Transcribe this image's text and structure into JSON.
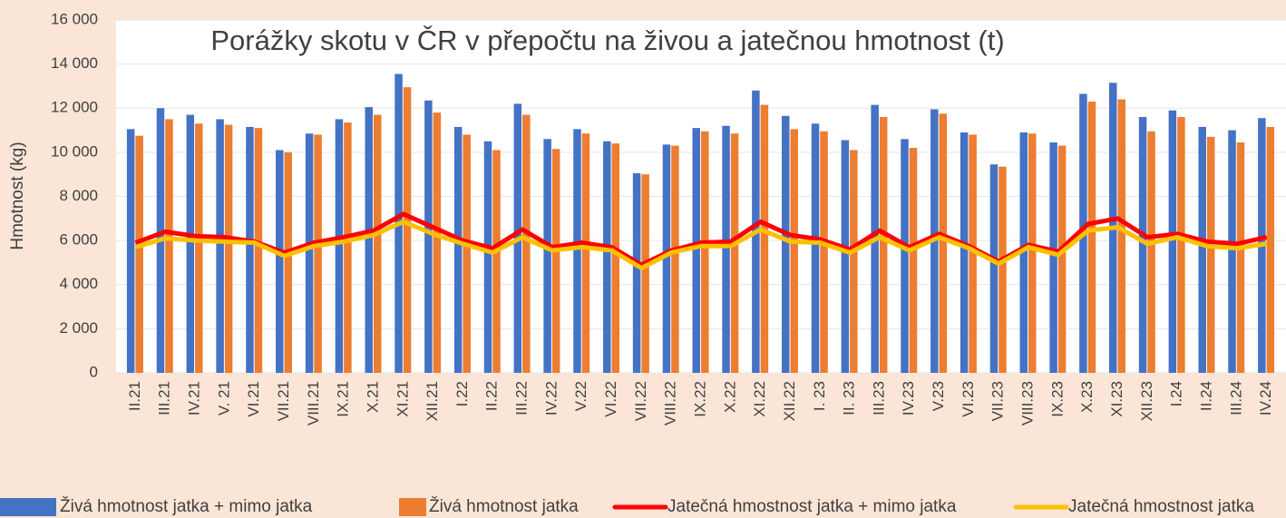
{
  "chart_data": {
    "type": "bar_line",
    "title": "Porážky skotu v ČR v přepočtu na živou a jatečnou hmotnost (t)",
    "y_label": "Hmotnost (kg)",
    "categories": [
      "II.21",
      "III.21",
      "IV.21",
      "V. 21",
      "VI.21",
      "VII.21",
      "VIII.21",
      "IX.21",
      "X.21",
      "XI.21",
      "XII.21",
      "I.22",
      "II.22",
      "III.22",
      "IV.22",
      "V.22",
      "VI.22",
      "VII.22",
      "VIII.22",
      "IX.22",
      "X.22",
      "XI.22",
      "XII.22",
      "I. 23",
      "II. 23",
      "III.23",
      "IV.23",
      "V.23",
      "VI.23",
      "VII.23",
      "VIII.23",
      "IX.23",
      "X.23",
      "XI.23",
      "XII.23",
      "I.24",
      "II.24",
      "III.24",
      "IV.24"
    ],
    "series": [
      {
        "name": "Živá hmotnost jatka + mimo jatka",
        "type": "bar",
        "color": "#4472c4",
        "values": [
          11050,
          12000,
          11700,
          11500,
          11150,
          10100,
          10850,
          11500,
          12050,
          13550,
          12350,
          11150,
          10500,
          12200,
          10600,
          11050,
          10500,
          9050,
          10350,
          11100,
          11200,
          12800,
          11650,
          11300,
          10550,
          12150,
          10600,
          11950,
          10900,
          9450,
          10900,
          10450,
          12650,
          13150,
          11600,
          11900,
          11150,
          11000,
          11550
        ]
      },
      {
        "name": "Živá hmotnost jatka",
        "type": "bar",
        "color": "#ed7d31",
        "values": [
          10750,
          11500,
          11300,
          11250,
          11100,
          10000,
          10800,
          11350,
          11700,
          12950,
          11800,
          10800,
          10100,
          11700,
          10150,
          10850,
          10400,
          9000,
          10300,
          10950,
          10850,
          12150,
          11050,
          10950,
          10100,
          11600,
          10200,
          11750,
          10800,
          9350,
          10850,
          10300,
          12300,
          12400,
          10950,
          11600,
          10700,
          10450,
          11150
        ]
      },
      {
        "name": "Jatečná hmostnost jatka + mimo jatka",
        "type": "line",
        "color": "#ff0000",
        "values": [
          5900,
          6400,
          6200,
          6150,
          5950,
          5450,
          5900,
          6150,
          6450,
          7200,
          6600,
          6000,
          5650,
          6500,
          5700,
          5900,
          5700,
          4900,
          5550,
          5900,
          5950,
          6850,
          6250,
          6050,
          5600,
          6450,
          5700,
          6300,
          5750,
          5050,
          5800,
          5500,
          6750,
          7000,
          6150,
          6300,
          5950,
          5850,
          6150
        ]
      },
      {
        "name": "Jatečná hmostnost jatka",
        "type": "line",
        "color": "#ffc000",
        "values": [
          5700,
          6100,
          6000,
          5950,
          5900,
          5300,
          5750,
          5950,
          6250,
          6850,
          6300,
          5850,
          5450,
          6150,
          5550,
          5700,
          5550,
          4750,
          5450,
          5750,
          5750,
          6500,
          5950,
          5900,
          5450,
          6150,
          5550,
          6150,
          5650,
          4950,
          5700,
          5350,
          6450,
          6600,
          5850,
          6150,
          5750,
          5650,
          5850
        ]
      }
    ],
    "ylim": [
      0,
      16000
    ],
    "yticks": [
      {
        "value": 0,
        "label": "0"
      },
      {
        "value": 2000,
        "label": "2 000"
      },
      {
        "value": 4000,
        "label": "4 000"
      },
      {
        "value": 6000,
        "label": "6 000"
      },
      {
        "value": 8000,
        "label": "8 000"
      },
      {
        "value": 10000,
        "label": "10 000"
      },
      {
        "value": 12000,
        "label": "12 000"
      },
      {
        "value": 14000,
        "label": "14 000"
      },
      {
        "value": 16000,
        "label": "16 000"
      }
    ],
    "grid": true,
    "legend": "bottom"
  }
}
